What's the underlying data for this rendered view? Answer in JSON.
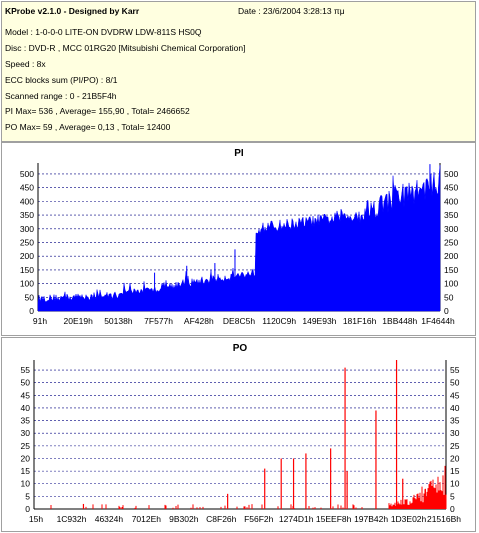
{
  "info": {
    "title": "KProbe v2.1.0 - Designed by Karr",
    "date": "Date : 23/6/2004 3:28:13 πμ",
    "lines": [
      "Model : 1-0-0-0 LITE-ON DVDRW LDW-811S   HS0Q",
      "Disc : DVD-R , MCC 01RG20  [Mitsubishi Chemical Corporation]",
      "Speed : 8x",
      "ECC blocks sum (PI/PO) : 8/1",
      "Scanned range : 0 - 21B5F4h",
      "PI Max= 536 , Average= 155,90 , Total= 2466652",
      "PO Max= 59 , Average= 0,13 , Total= 12400"
    ]
  },
  "colors": {
    "pi_series": "#0000ff",
    "po_series": "#ff0000",
    "info_bg": "#ffffe0",
    "grid": "#000080"
  },
  "chart_data": [
    {
      "type": "area",
      "title": "PI",
      "grid": true,
      "ylim": [
        0,
        540
      ],
      "yticks": [
        0,
        50,
        100,
        150,
        200,
        250,
        300,
        350,
        400,
        450,
        500
      ],
      "xticks": [
        "91h",
        "20E19h",
        "50138h",
        "7F577h",
        "AF428h",
        "DE8C5h",
        "1120C9h",
        "149E93h",
        "181F16h",
        "1BB448h",
        "1F4644h"
      ],
      "segments": [
        {
          "x_frac": [
            0.0,
            0.2
          ],
          "base": [
            45,
            58
          ],
          "noise": 14
        },
        {
          "x_frac": [
            0.2,
            0.3
          ],
          "base": [
            68,
            78
          ],
          "noise": 12
        },
        {
          "x_frac": [
            0.3,
            0.54
          ],
          "base": [
            85,
            140
          ],
          "noise": 16
        },
        {
          "x_frac": [
            0.54,
            0.8
          ],
          "base": [
            300,
            350
          ],
          "noise": 22
        },
        {
          "x_frac": [
            0.8,
            1.0
          ],
          "base": [
            360,
            470
          ],
          "noise": 45
        }
      ],
      "spikes": [
        {
          "x_frac": 0.29,
          "value": 140
        },
        {
          "x_frac": 0.37,
          "value": 165
        },
        {
          "x_frac": 0.44,
          "value": 175
        },
        {
          "x_frac": 0.49,
          "value": 225
        },
        {
          "x_frac": 0.975,
          "value": 536
        }
      ]
    },
    {
      "type": "bar",
      "title": "PO",
      "grid": true,
      "ylim": [
        0,
        59
      ],
      "yticks": [
        0,
        5,
        10,
        15,
        20,
        25,
        30,
        35,
        40,
        45,
        50,
        55
      ],
      "xticks": [
        "15h",
        "1C932h",
        "46324h",
        "7012Eh",
        "9B302h",
        "C8F26h",
        "F56F2h",
        "1274D1h",
        "15EEF8h",
        "197B42h",
        "1D3E02h",
        "21516Bh"
      ],
      "baseline_noise": 2,
      "rising_end": {
        "x_frac": [
          0.86,
          1.0
        ],
        "values": [
          2,
          15
        ]
      },
      "spikes": [
        {
          "x_frac": 0.12,
          "value": 2
        },
        {
          "x_frac": 0.47,
          "value": 6
        },
        {
          "x_frac": 0.56,
          "value": 16
        },
        {
          "x_frac": 0.6,
          "value": 20
        },
        {
          "x_frac": 0.63,
          "value": 20
        },
        {
          "x_frac": 0.66,
          "value": 22
        },
        {
          "x_frac": 0.72,
          "value": 24
        },
        {
          "x_frac": 0.755,
          "value": 56
        },
        {
          "x_frac": 0.76,
          "value": 15
        },
        {
          "x_frac": 0.83,
          "value": 39
        },
        {
          "x_frac": 0.88,
          "value": 59
        },
        {
          "x_frac": 0.895,
          "value": 12
        },
        {
          "x_frac": 0.95,
          "value": 8
        }
      ]
    }
  ]
}
